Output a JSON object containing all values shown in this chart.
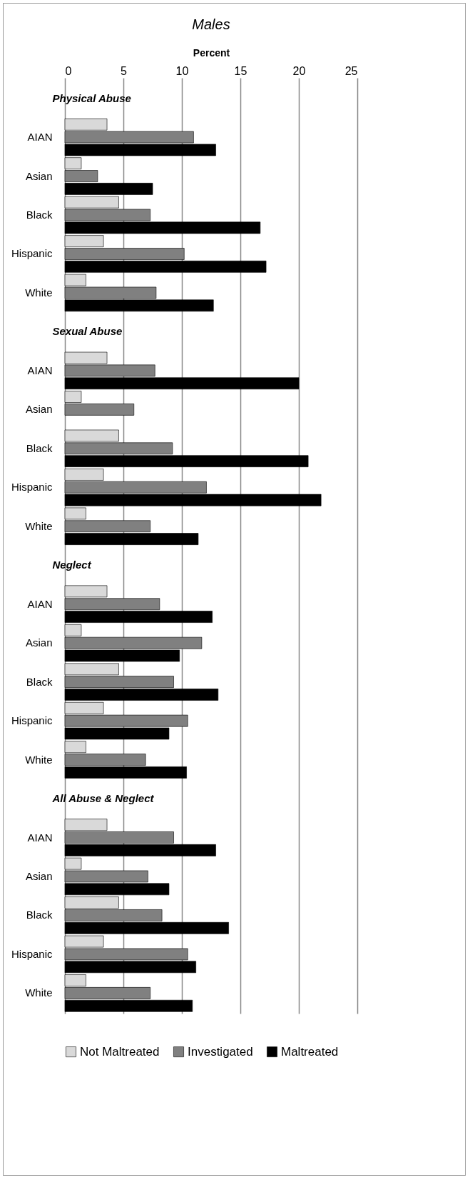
{
  "chart_data": {
    "type": "bar",
    "orientation": "horizontal",
    "title": "Males",
    "xlabel": "Percent",
    "categories": [
      "Physical Abuse",
      "AIAN",
      "Asian",
      "Black",
      "Hispanic",
      "White",
      "Sexual Abuse",
      "AIAN",
      "Asian",
      "Black",
      "Hispanic",
      "White",
      "Neglect",
      "AIAN",
      "Asian",
      "Black",
      "Hispanic",
      "White",
      "All Abuse & Neglect",
      "AIAN",
      "Asian",
      "Black",
      "Hispanic",
      "White"
    ],
    "series": [
      {
        "name": "Not Maltreated",
        "color": "#d9d9d9",
        "values": [
          null,
          3.6,
          1.4,
          4.6,
          3.3,
          1.8,
          null,
          3.6,
          1.4,
          4.6,
          3.3,
          1.8,
          null,
          3.6,
          1.4,
          4.6,
          3.3,
          1.8,
          null,
          3.6,
          1.4,
          4.6,
          3.3,
          1.8
        ]
      },
      {
        "name": "Investigated",
        "color": "#808080",
        "values": [
          null,
          11.0,
          2.8,
          7.3,
          10.2,
          7.8,
          null,
          7.7,
          5.9,
          9.2,
          12.1,
          7.3,
          null,
          8.1,
          11.7,
          9.3,
          10.5,
          6.9,
          null,
          9.3,
          7.1,
          8.3,
          10.5,
          7.3
        ]
      },
      {
        "name": "Maltreated",
        "color": "#000000",
        "values": [
          null,
          12.9,
          7.5,
          16.7,
          17.2,
          12.7,
          null,
          20.0,
          null,
          20.8,
          21.9,
          11.4,
          null,
          12.6,
          9.8,
          13.1,
          8.9,
          10.4,
          null,
          12.9,
          8.9,
          14.0,
          11.2,
          10.9
        ]
      }
    ],
    "xlim": [
      0,
      25
    ],
    "xticks": [
      0,
      5,
      10,
      15,
      20,
      25
    ],
    "grid": "x",
    "legend": "bottom"
  }
}
